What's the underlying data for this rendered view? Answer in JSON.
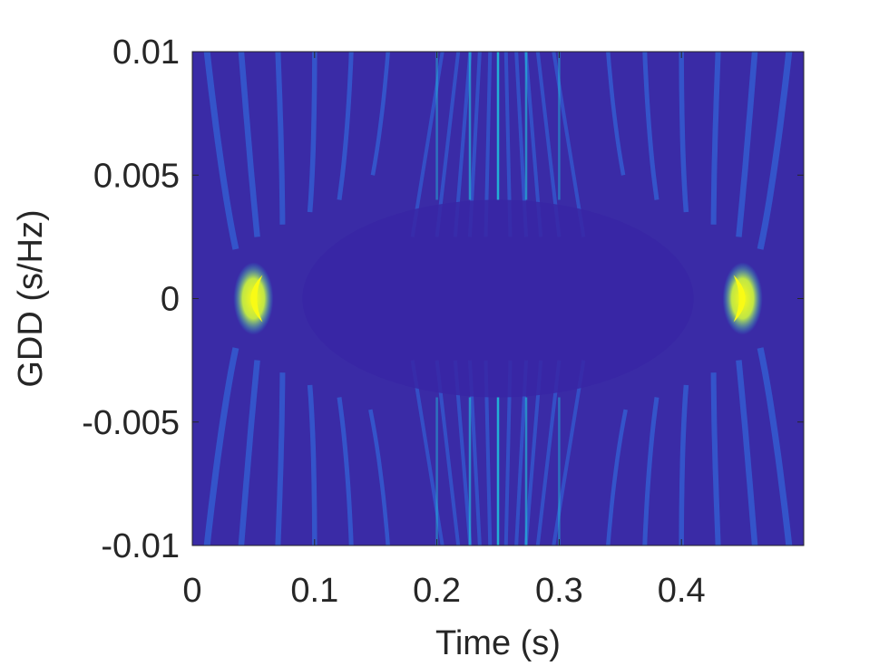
{
  "chart_data": {
    "type": "heatmap",
    "title": "",
    "xlabel": "Time (s)",
    "ylabel": "GDD (s/Hz)",
    "xlim": [
      0,
      0.5
    ],
    "ylim": [
      -0.01,
      0.01
    ],
    "x_ticks": [
      {
        "value": 0,
        "label": "0"
      },
      {
        "value": 0.1,
        "label": "0.1"
      },
      {
        "value": 0.2,
        "label": "0.2"
      },
      {
        "value": 0.3,
        "label": "0.3"
      },
      {
        "value": 0.4,
        "label": "0.4"
      }
    ],
    "y_ticks": [
      {
        "value": 0.01,
        "label": "0.01"
      },
      {
        "value": 0.005,
        "label": "0.005"
      },
      {
        "value": 0,
        "label": "0"
      },
      {
        "value": -0.005,
        "label": "-0.005"
      },
      {
        "value": -0.01,
        "label": "-0.01"
      }
    ],
    "colormap": [
      "#3e26a8",
      "#2e87f7",
      "#1fc8de",
      "#f9fb15"
    ],
    "background_color": "#3a2ba6",
    "grid": false,
    "hotspots": [
      {
        "time": 0.05,
        "gdd": 0
      },
      {
        "time": 0.45,
        "gdd": 0
      }
    ],
    "vertical_lines": [
      {
        "time": 0.25,
        "intensity": 0.85
      },
      {
        "time": 0.227,
        "intensity": 0.6
      },
      {
        "time": 0.273,
        "intensity": 0.6
      },
      {
        "time": 0.2,
        "intensity": 0.45
      },
      {
        "time": 0.3,
        "intensity": 0.45
      }
    ]
  }
}
